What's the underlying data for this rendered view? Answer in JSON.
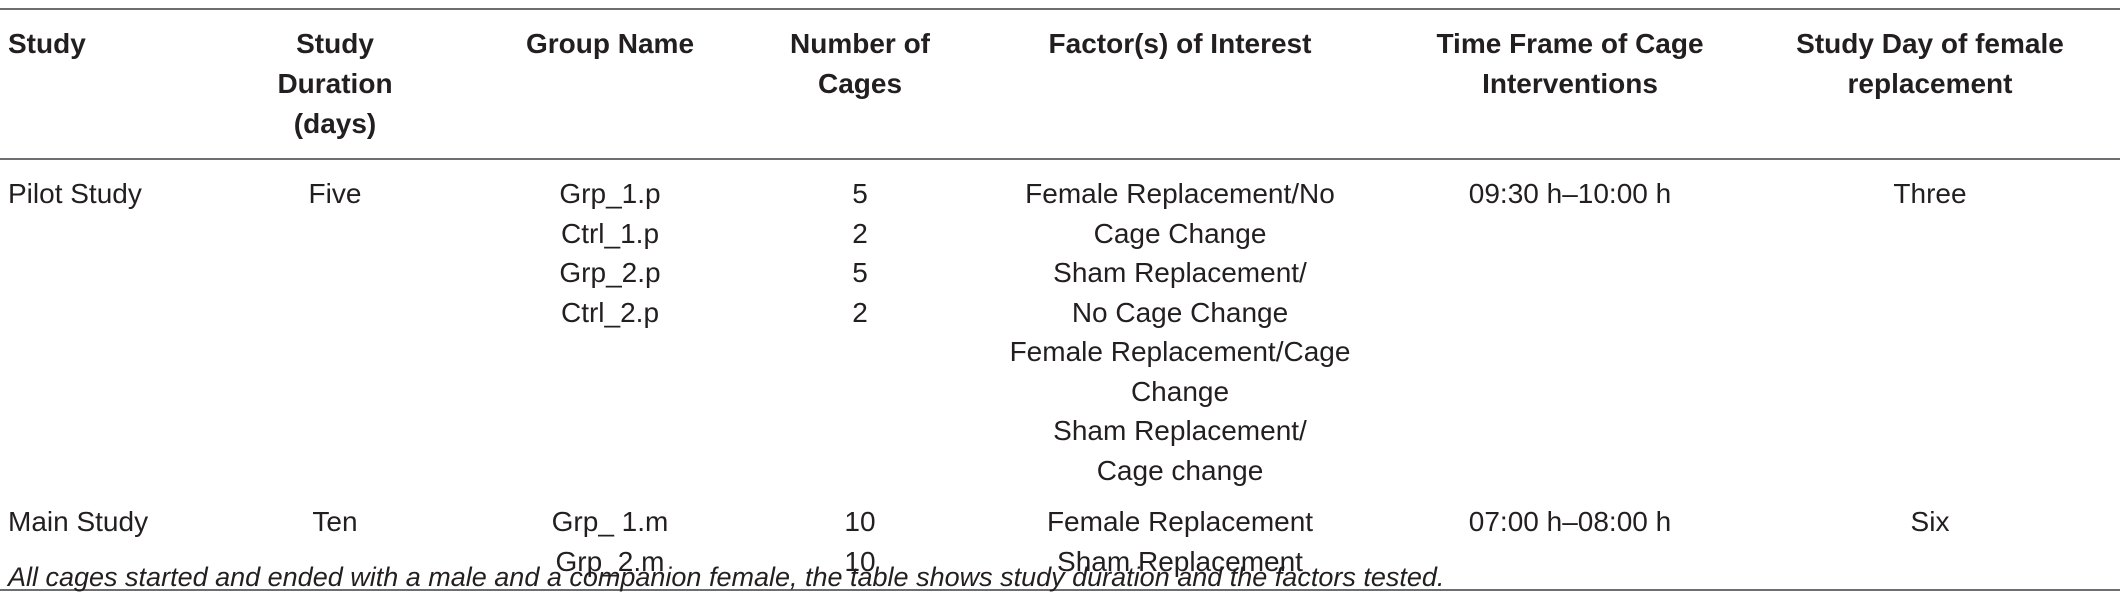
{
  "table": {
    "headers": [
      "Study",
      "Study Duration (days)",
      "Group Name",
      "Number of Cages",
      "Factor(s) of Interest",
      "Time Frame of Cage Interventions",
      "Study Day of female replacement"
    ],
    "rows": [
      {
        "study": "Pilot Study",
        "duration": "Five",
        "groups": [
          "Grp_1.p",
          "Ctrl_1.p",
          "Grp_2.p",
          "Ctrl_2.p"
        ],
        "cages": [
          "5",
          "2",
          "5",
          "2"
        ],
        "factors": [
          "Female Replacement/No Cage Change",
          "Sham Replacement/ No Cage Change",
          "Female Replacement/Cage Change",
          "Sham Replacement/ Cage change"
        ],
        "time_frame": "09:30 h–10:00 h",
        "female_replacement_day": "Three"
      },
      {
        "study": "Main Study",
        "duration": "Ten",
        "groups": [
          "Grp_ 1.m",
          "Grp_2.m"
        ],
        "cages": [
          "10",
          "10"
        ],
        "factors": [
          "Female Replacement",
          "Sham Replacement"
        ],
        "time_frame": "07:00 h–08:00 h",
        "female_replacement_day": "Six"
      }
    ]
  },
  "footnote": "All cages started and ended with a male and a companion female, the table shows study duration and the factors tested."
}
